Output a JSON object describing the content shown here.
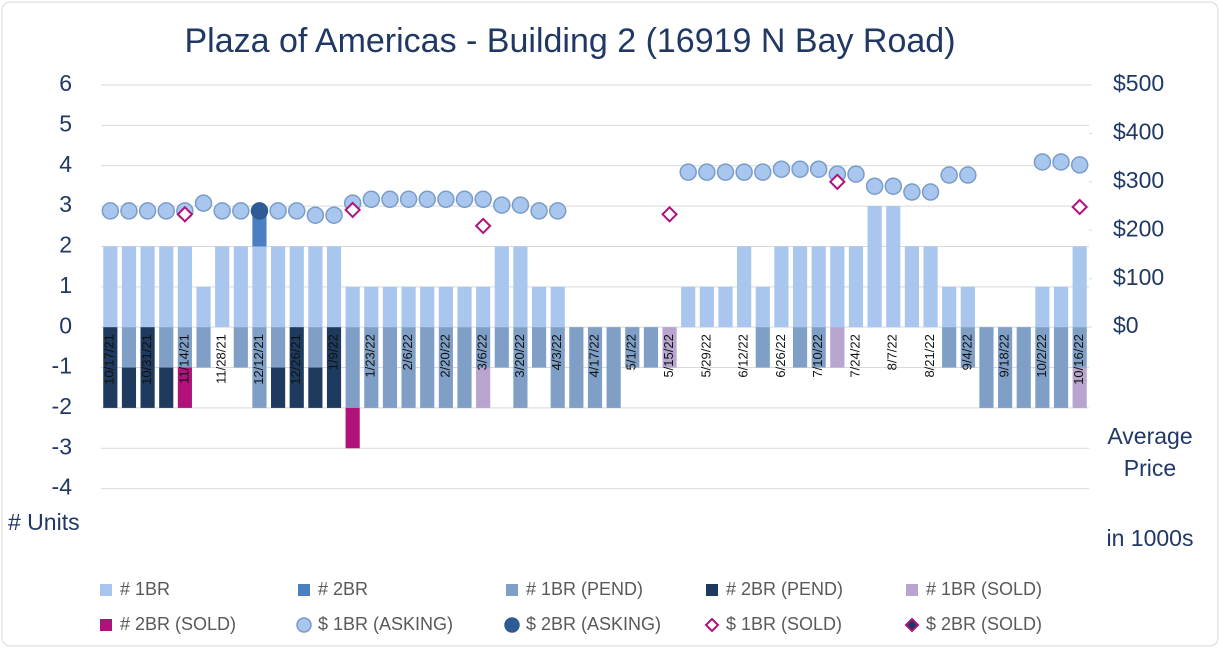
{
  "chart_data": {
    "type": "bar",
    "title": "Plaza of Americas - Building 2 (16919 N Bay Road)",
    "y_label": "# Units",
    "y2_label": [
      "Average",
      "Price"
    ],
    "y2_unit": "in 1000s",
    "categories": [
      "10/17/21",
      null,
      "10/31/21",
      null,
      "11/14/21",
      null,
      "11/28/21",
      null,
      "12/12/21",
      null,
      "12/26/21",
      null,
      "1/9/22",
      null,
      "1/23/22",
      null,
      "2/6/22",
      null,
      "2/20/22",
      null,
      "3/6/22",
      null,
      "3/20/22",
      null,
      "4/3/22",
      null,
      "4/17/22",
      null,
      "5/1/22",
      null,
      "5/15/22",
      null,
      "5/29/22",
      null,
      "6/12/22",
      null,
      "6/26/22",
      null,
      "7/10/22",
      null,
      "7/24/22",
      null,
      "8/7/22",
      null,
      "8/21/22",
      null,
      "9/4/22",
      null,
      "9/18/22",
      null,
      "10/2/22",
      null,
      "10/16/22"
    ],
    "ylim": [
      -5,
      6
    ],
    "yticks": [
      -4,
      -3,
      -2,
      -1,
      0,
      1,
      2,
      3,
      4,
      5,
      6
    ],
    "y2lim": [
      -417,
      500
    ],
    "y2ticks": [
      {
        "value": 0,
        "label": "$0"
      },
      {
        "value": 100,
        "label": "$100"
      },
      {
        "value": 200,
        "label": "$200"
      },
      {
        "value": 300,
        "label": "$300"
      },
      {
        "value": 400,
        "label": "$400"
      },
      {
        "value": 500,
        "label": "$500"
      }
    ],
    "grid": true,
    "legend": "bottom",
    "series": [
      {
        "name": "# 1BR",
        "type": "bar",
        "color": "#a9c6ef",
        "values": [
          2,
          2,
          2,
          2,
          2,
          1,
          2,
          2,
          2,
          2,
          2,
          2,
          2,
          1,
          1,
          1,
          1,
          1,
          1,
          1,
          1,
          2,
          2,
          1,
          1,
          null,
          null,
          null,
          null,
          null,
          null,
          1,
          1,
          1,
          2,
          1,
          2,
          2,
          2,
          2,
          2,
          3,
          3,
          2,
          2,
          1,
          1,
          null,
          null,
          null,
          1,
          1,
          2
        ]
      },
      {
        "name": "# 2BR",
        "type": "bar",
        "color": "#4a7fc1",
        "values": [
          null,
          null,
          null,
          null,
          null,
          null,
          null,
          null,
          1,
          null,
          null,
          null,
          null,
          null,
          null,
          null,
          null,
          null,
          null,
          null,
          null,
          null,
          null,
          null,
          null,
          null,
          null,
          null,
          null,
          null,
          null,
          null,
          null,
          null,
          null,
          null,
          null,
          null,
          null,
          null,
          null,
          null,
          null,
          null,
          null,
          null,
          null,
          null,
          null,
          null,
          null,
          null,
          null
        ]
      },
      {
        "name": "# 1BR (PEND)",
        "type": "bar",
        "color": "#7f9fc6",
        "values": [
          null,
          -1,
          null,
          -1,
          -1,
          -1,
          null,
          -1,
          -2,
          -1,
          null,
          -1,
          null,
          -2,
          -2,
          -2,
          -2,
          -2,
          -2,
          -2,
          -1,
          -1,
          -2,
          -1,
          -2,
          -2,
          -2,
          -2,
          -1,
          -1,
          null,
          null,
          null,
          null,
          null,
          -1,
          null,
          -1,
          -1,
          null,
          null,
          null,
          null,
          null,
          null,
          -1,
          -1,
          -2,
          -2,
          -2,
          -2,
          -2,
          -1
        ]
      },
      {
        "name": "# 2BR (PEND)",
        "type": "bar",
        "color": "#1f3a5f",
        "values": [
          -2,
          -1,
          -2,
          -1,
          null,
          null,
          null,
          null,
          null,
          -1,
          -2,
          -1,
          -2,
          null,
          null,
          null,
          null,
          null,
          null,
          null,
          null,
          null,
          null,
          null,
          null,
          null,
          null,
          null,
          null,
          null,
          null,
          null,
          null,
          null,
          null,
          null,
          null,
          null,
          null,
          null,
          null,
          null,
          null,
          null,
          null,
          null,
          null,
          null,
          null,
          null,
          null,
          null,
          null
        ]
      },
      {
        "name": "# 1BR (SOLD)",
        "type": "bar",
        "color": "#b7a4cf",
        "values": [
          null,
          null,
          null,
          null,
          null,
          null,
          null,
          null,
          null,
          null,
          null,
          null,
          null,
          null,
          null,
          null,
          null,
          null,
          null,
          null,
          -1,
          null,
          null,
          null,
          null,
          null,
          null,
          null,
          null,
          null,
          -1,
          null,
          null,
          null,
          null,
          null,
          null,
          null,
          null,
          -1,
          null,
          null,
          null,
          null,
          null,
          null,
          null,
          null,
          null,
          null,
          null,
          null,
          -1
        ]
      },
      {
        "name": "# 2BR (SOLD)",
        "type": "bar",
        "color": "#b0127a",
        "values": [
          null,
          null,
          null,
          null,
          -1,
          null,
          null,
          null,
          null,
          null,
          null,
          null,
          null,
          -1,
          null,
          null,
          null,
          null,
          null,
          null,
          null,
          null,
          null,
          null,
          null,
          null,
          null,
          null,
          null,
          null,
          null,
          null,
          null,
          null,
          null,
          null,
          null,
          null,
          null,
          null,
          null,
          null,
          null,
          null,
          null,
          null,
          null,
          null,
          null,
          null,
          null,
          null,
          null
        ]
      },
      {
        "name": "$ 1BR (ASKING)",
        "type": "scatter",
        "marker": "circle",
        "axis": "y2",
        "color": "#a9c6ef",
        "edge": "#7a9cc8",
        "values": [
          240,
          240,
          240,
          240,
          240,
          256,
          240,
          240,
          null,
          240,
          240,
          231,
          231,
          256,
          264,
          264,
          264,
          264,
          264,
          264,
          264,
          252,
          252,
          240,
          240,
          null,
          null,
          null,
          null,
          null,
          null,
          320,
          320,
          320,
          320,
          320,
          326,
          326,
          326,
          316,
          316,
          291,
          291,
          279,
          279,
          314,
          314,
          null,
          null,
          null,
          341,
          341,
          335
        ]
      },
      {
        "name": "$ 2BR (ASKING)",
        "type": "scatter",
        "marker": "circle",
        "axis": "y2",
        "color": "#2e5b93",
        "edge": "#2e5b93",
        "values": [
          null,
          null,
          null,
          null,
          null,
          null,
          null,
          null,
          240,
          null,
          null,
          null,
          null,
          null,
          null,
          null,
          null,
          null,
          null,
          null,
          null,
          null,
          null,
          null,
          null,
          null,
          null,
          null,
          null,
          null,
          null,
          null,
          null,
          null,
          null,
          null,
          null,
          null,
          null,
          null,
          null,
          null,
          null,
          null,
          null,
          null,
          null,
          null,
          null,
          null,
          null,
          null,
          null
        ]
      },
      {
        "name": "$ 1BR (SOLD)",
        "type": "scatter",
        "marker": "diamond",
        "axis": "y2",
        "color": "#ffffff",
        "edge": "#b0127a",
        "values": [
          null,
          null,
          null,
          null,
          233,
          null,
          null,
          null,
          null,
          null,
          null,
          null,
          null,
          242,
          null,
          null,
          null,
          null,
          null,
          null,
          209,
          null,
          null,
          null,
          null,
          null,
          null,
          null,
          null,
          null,
          233,
          null,
          null,
          null,
          null,
          null,
          null,
          null,
          null,
          300,
          null,
          null,
          null,
          null,
          null,
          null,
          null,
          null,
          null,
          null,
          null,
          null,
          248
        ]
      },
      {
        "name": "$ 2BR (SOLD)",
        "type": "scatter",
        "marker": "diamond",
        "axis": "y2",
        "color": "#1f3a5f",
        "edge": "#b0127a",
        "values": [
          null,
          null,
          null,
          null,
          null,
          null,
          null,
          null,
          null,
          null,
          null,
          null,
          null,
          null,
          null,
          null,
          null,
          null,
          null,
          null,
          null,
          null,
          null,
          null,
          null,
          null,
          null,
          null,
          null,
          null,
          null,
          null,
          null,
          null,
          null,
          null,
          null,
          null,
          null,
          null,
          null,
          null,
          null,
          null,
          null,
          null,
          null,
          null,
          null,
          null,
          null,
          null,
          null
        ]
      }
    ]
  }
}
